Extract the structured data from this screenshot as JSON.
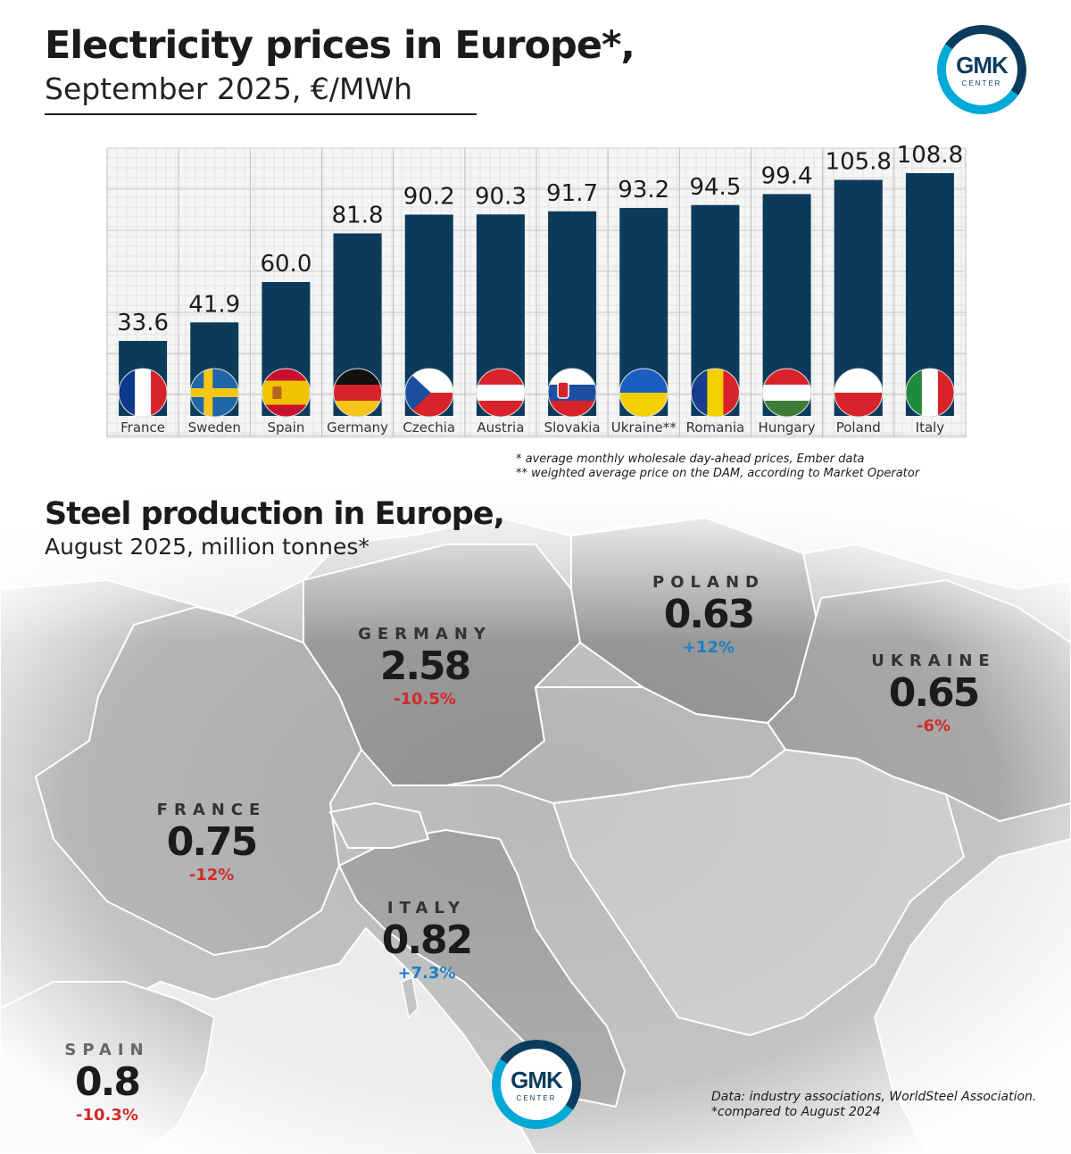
{
  "header": {
    "title": "Electricity prices in Europe*,",
    "subtitle": "September 2025, €/MWh",
    "logo_text": "GMK",
    "logo_sub": "CENTER"
  },
  "chart_data": {
    "type": "bar",
    "title": "Electricity prices in Europe*,",
    "subtitle": "September 2025, €/MWh",
    "categories": [
      "France",
      "Sweden",
      "Spain",
      "Germany",
      "Czechia",
      "Austria",
      "Slovakia",
      "Ukraine**",
      "Romania",
      "Hungary",
      "Poland",
      "Italy"
    ],
    "values": [
      33.6,
      41.9,
      60.0,
      81.8,
      90.2,
      90.3,
      91.7,
      93.2,
      94.5,
      99.4,
      105.8,
      108.8
    ],
    "value_labels": [
      "33.6",
      "41.9",
      "60.0",
      "81.8",
      "90.2",
      "90.3",
      "91.7",
      "93.2",
      "94.5",
      "99.4",
      "105.8",
      "108.8"
    ],
    "bar_color": "#0b3a5a",
    "grid": true
  },
  "footnotes": {
    "note1": "* average monthly wholesale day-ahead prices, Ember data",
    "note2": "** weighted average price on the DAM, according to Market Operator"
  },
  "steel": {
    "title": "Steel production in Europe,",
    "subtitle": "August 2025, million tonnes*",
    "countries": [
      {
        "name": "GERMANY",
        "value": "2.58",
        "change": "-10.5%"
      },
      {
        "name": "POLAND",
        "value": "0.63",
        "change": "+12%"
      },
      {
        "name": "UKRAINE",
        "value": "0.65",
        "change": "-6%"
      },
      {
        "name": "FRANCE",
        "value": "0.75",
        "change": "-12%"
      },
      {
        "name": "ITALY",
        "value": "0.82",
        "change": "+7.3%"
      },
      {
        "name": "SPAIN",
        "value": "0.8",
        "change": "-10.3%"
      }
    ],
    "source_line1": "Data: industry associations, WorldSteel Association.",
    "source_line2": "*compared to August 2024"
  },
  "colors": {
    "negative": "#d02a2a",
    "positive": "#1c7fc4",
    "brand_dark": "#0b3c5d",
    "brand_light": "#00a9d6"
  }
}
